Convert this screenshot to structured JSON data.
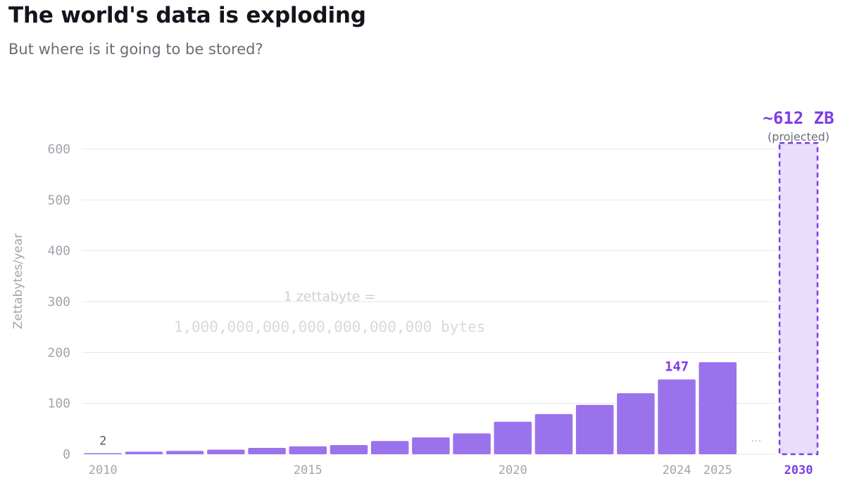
{
  "header": {
    "title": "The world's data is exploding",
    "subtitle": "But where is it going to be stored?"
  },
  "colors": {
    "bar": "#9a72ec",
    "projected_fill": "#e8ddfb",
    "projected_stroke": "#7c3ee6",
    "accent_text": "#7c3ee6",
    "grid": "#e6e6ec",
    "tick_text": "#a3a3ad",
    "title": "#14141c",
    "subtitle": "#6b6b78"
  },
  "annotation": {
    "line1": "1 zettabyte =",
    "line2": "1,000,000,000,000,000,000,000 bytes"
  },
  "chart_data": {
    "type": "bar",
    "title": "The world's data is exploding",
    "subtitle": "But where is it going to be stored?",
    "ylabel": "Zettabytes/year",
    "xlabel": "",
    "ylim": [
      0,
      600
    ],
    "yticks": [
      0,
      100,
      200,
      300,
      400,
      500,
      600
    ],
    "grid": true,
    "categories": [
      "2010",
      "2011",
      "2012",
      "2013",
      "2014",
      "2015",
      "2016",
      "2017",
      "2018",
      "2019",
      "2020",
      "2021",
      "2022",
      "2023",
      "2024",
      "2025",
      "2030"
    ],
    "values": [
      2,
      5,
      6.5,
      9,
      12.5,
      15.5,
      18,
      26,
      33,
      41,
      64,
      79,
      97,
      120,
      147,
      181,
      612
    ],
    "projected": [
      false,
      false,
      false,
      false,
      false,
      false,
      false,
      false,
      false,
      false,
      false,
      false,
      false,
      false,
      false,
      false,
      true
    ],
    "xtick_labels": [
      "2010",
      "2015",
      "2020",
      "2024",
      "2025",
      "2030"
    ],
    "data_labels": [
      {
        "category": "2010",
        "text": "2"
      },
      {
        "category": "2024",
        "text": "147"
      }
    ],
    "projected_label": {
      "value": "~612 ZB",
      "note": "(projected)"
    },
    "gap_marker": "..."
  }
}
